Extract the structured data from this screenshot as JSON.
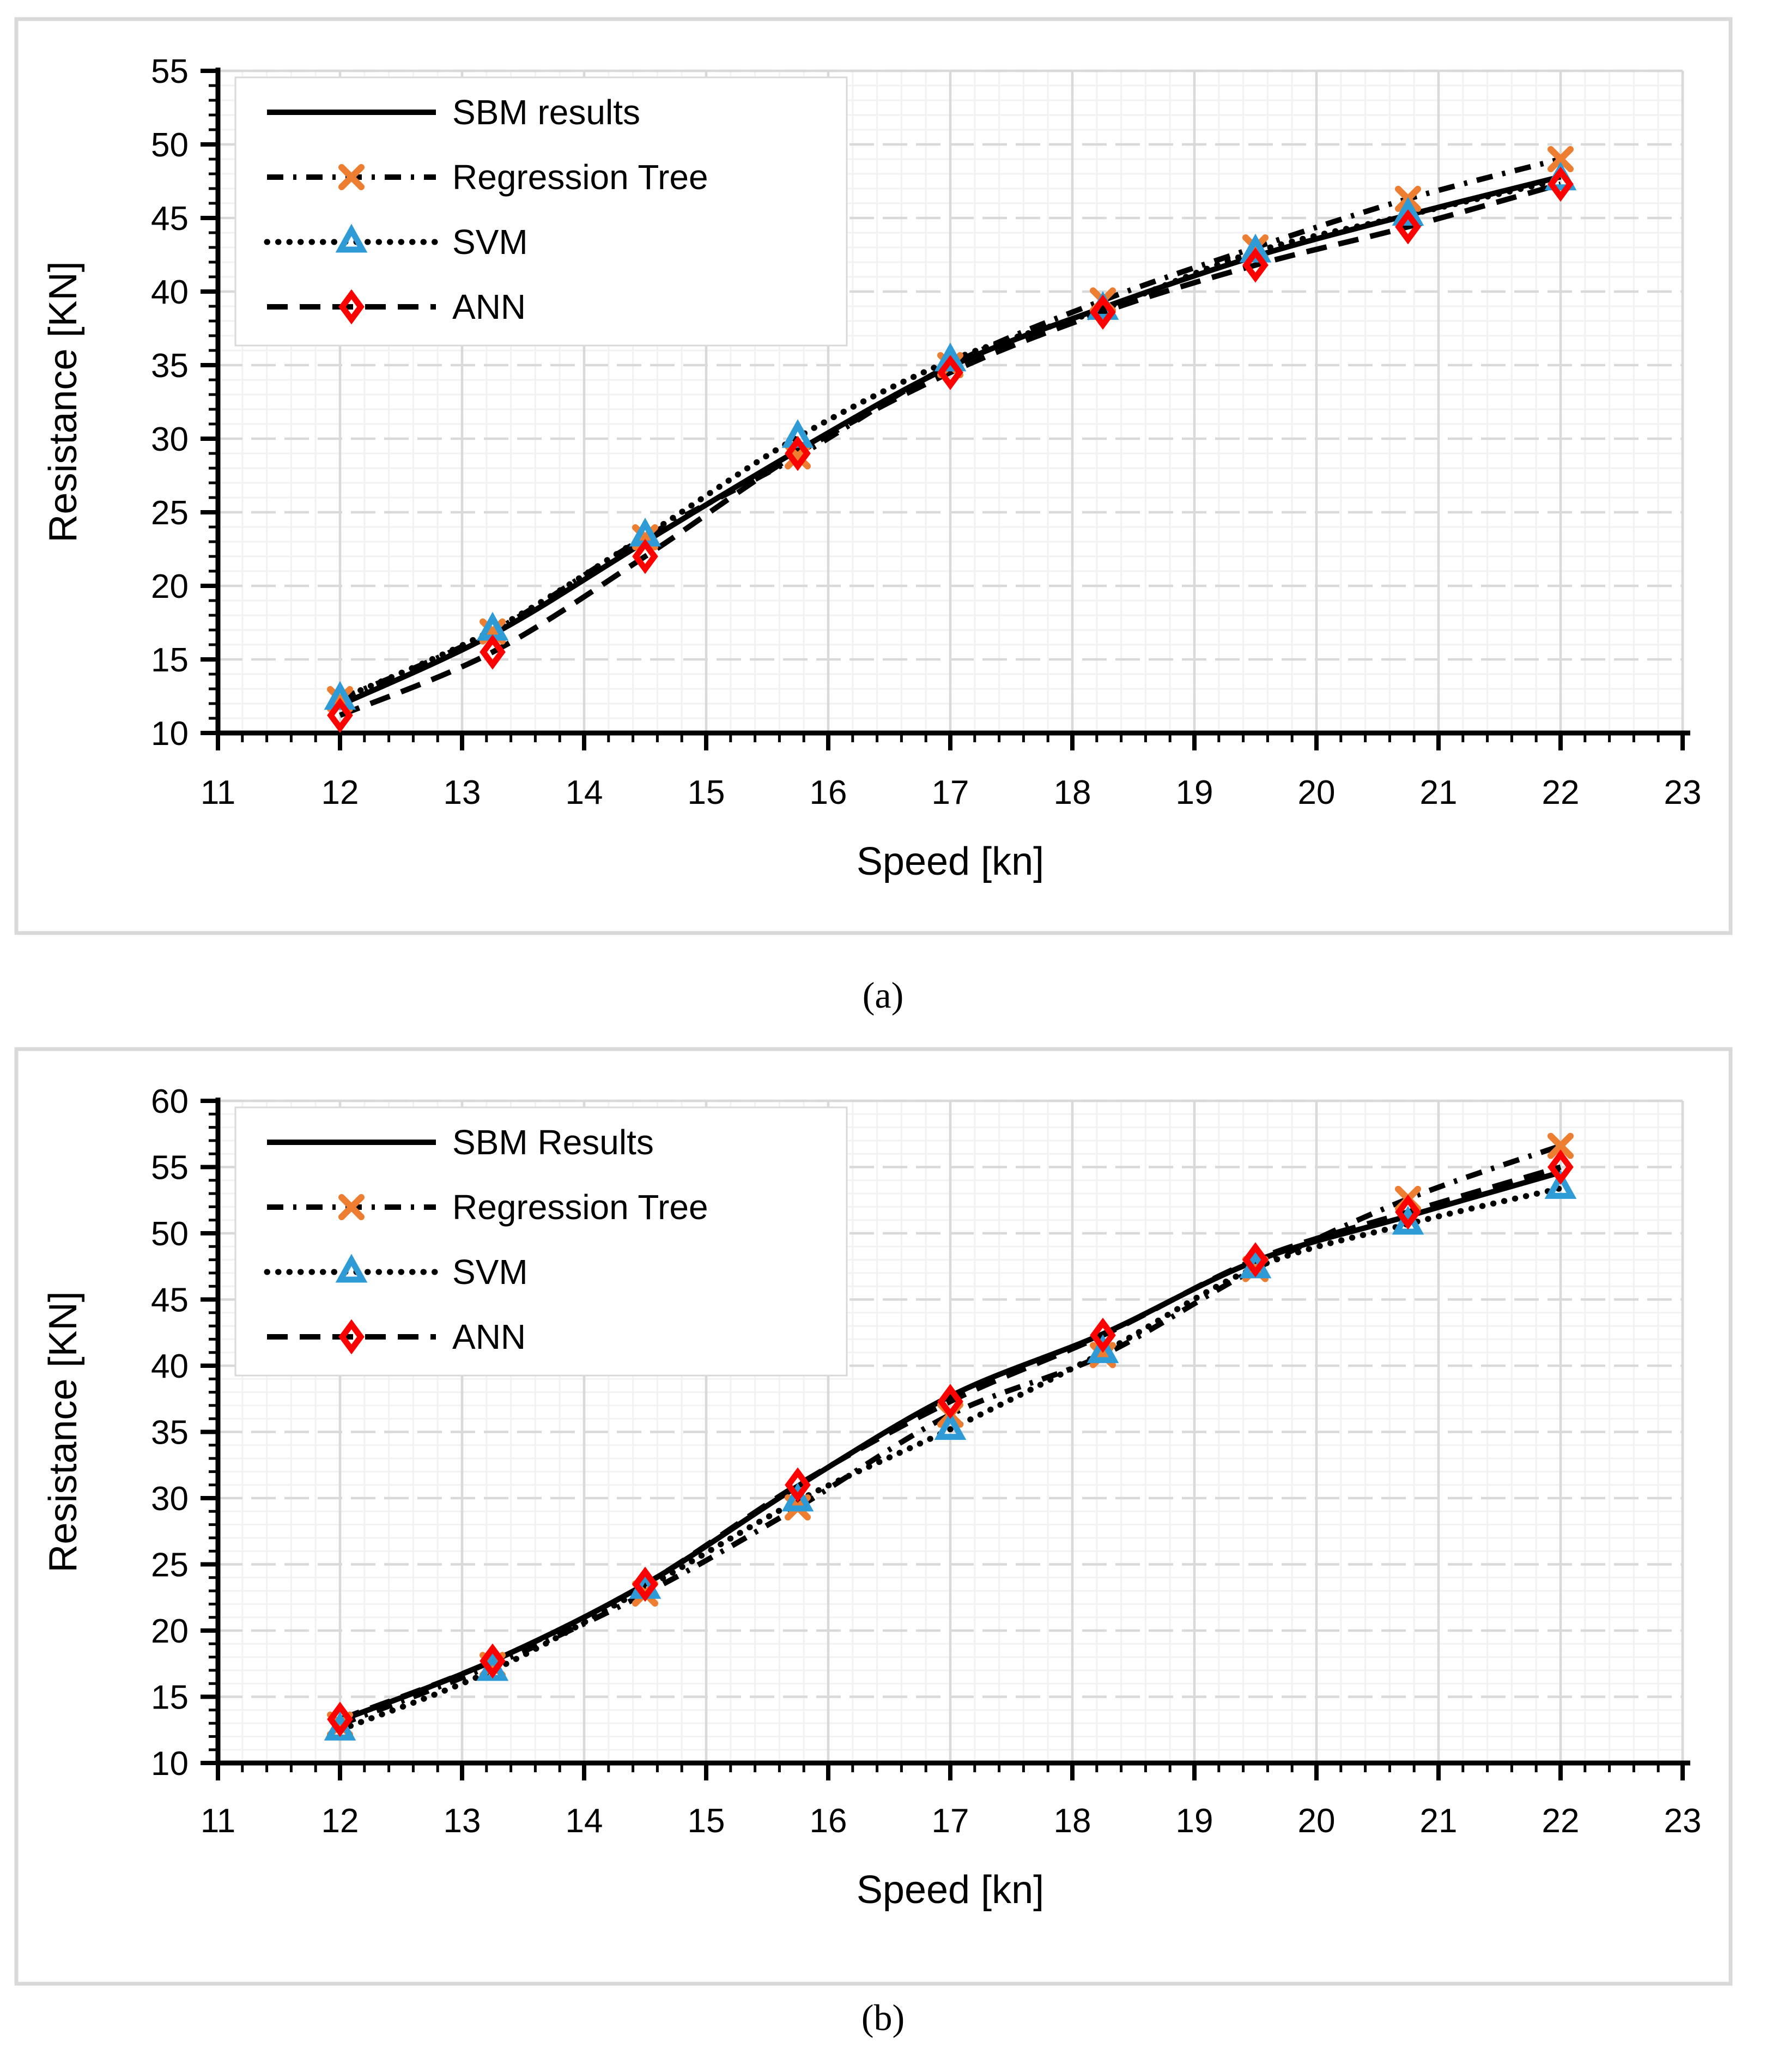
{
  "figure": {
    "captions": {
      "a": "(a)",
      "b": "(b)"
    },
    "colors": {
      "line": "#000000",
      "regression_tree": "#ED7D31",
      "svm": "#2E9BD6",
      "ann": "#FF0000",
      "grid_major": "#D9D9D9",
      "grid_minor": "#F2F2F2",
      "panel_border": "#D9D9D9",
      "text": "#000000",
      "background": "#FFFFFF"
    }
  },
  "chart_data": [
    {
      "id": "a",
      "type": "line",
      "title": "",
      "xlabel": "Speed [kn]",
      "ylabel": "Resistance [KN]",
      "xlim": [
        11,
        23
      ],
      "ylim": [
        10,
        55
      ],
      "x_major_step": 1,
      "x_minor_step": 0.2,
      "y_major_step": 5,
      "y_minor_step": 1,
      "grid": true,
      "legend_position": "upper-left",
      "x": [
        12,
        13.25,
        14.5,
        15.75,
        17,
        18.25,
        19.5,
        20.75,
        22
      ],
      "series": [
        {
          "name": "SBM results",
          "line_style": "solid",
          "marker": "none",
          "marker_color": "#000000",
          "values": [
            11.9,
            16.7,
            23.0,
            29.2,
            34.9,
            38.9,
            42.4,
            45.2,
            47.8
          ]
        },
        {
          "name": "Regression Tree",
          "line_style": "dashdot",
          "marker": "x",
          "marker_color": "#ED7D31",
          "values": [
            12.3,
            16.9,
            23.3,
            28.8,
            35.0,
            39.4,
            43.0,
            46.3,
            49.0
          ]
        },
        {
          "name": "SVM",
          "line_style": "dotted",
          "marker": "triangle",
          "marker_color": "#2E9BD6",
          "values": [
            12.3,
            17.0,
            23.4,
            30.1,
            35.3,
            38.8,
            42.7,
            45.2,
            47.6
          ]
        },
        {
          "name": "ANN",
          "line_style": "dashed",
          "marker": "diamond",
          "marker_color": "#FF0000",
          "values": [
            11.2,
            15.5,
            22.0,
            29.0,
            34.5,
            38.6,
            41.8,
            44.4,
            47.3
          ]
        }
      ]
    },
    {
      "id": "b",
      "type": "line",
      "title": "",
      "xlabel": "Speed [kn]",
      "ylabel": "Resistance [KN]",
      "xlim": [
        11,
        23
      ],
      "ylim": [
        10,
        60
      ],
      "x_major_step": 1,
      "x_minor_step": 0.2,
      "y_major_step": 5,
      "y_minor_step": 1,
      "grid": true,
      "legend_position": "upper-left",
      "x": [
        12,
        13.25,
        14.5,
        15.75,
        17,
        18.25,
        19.5,
        20.75,
        22
      ],
      "series": [
        {
          "name": "SBM Results",
          "line_style": "solid",
          "marker": "none",
          "marker_color": "#000000",
          "values": [
            13.2,
            17.7,
            23.5,
            30.9,
            37.7,
            42.4,
            47.9,
            51.3,
            54.6
          ]
        },
        {
          "name": "Regression Tree",
          "line_style": "dashdot",
          "marker": "x",
          "marker_color": "#ED7D31",
          "values": [
            12.9,
            17.4,
            22.8,
            29.3,
            36.3,
            40.8,
            47.3,
            52.6,
            56.6
          ]
        },
        {
          "name": "SVM",
          "line_style": "dotted",
          "marker": "triangle",
          "marker_color": "#2E9BD6",
          "values": [
            12.5,
            17.0,
            23.2,
            29.8,
            35.2,
            41.0,
            47.4,
            50.7,
            53.4
          ]
        },
        {
          "name": "ANN",
          "line_style": "dashed",
          "marker": "diamond",
          "marker_color": "#FF0000",
          "values": [
            13.3,
            17.7,
            23.5,
            31.0,
            37.3,
            42.3,
            48.0,
            51.6,
            55.0
          ]
        }
      ]
    }
  ]
}
